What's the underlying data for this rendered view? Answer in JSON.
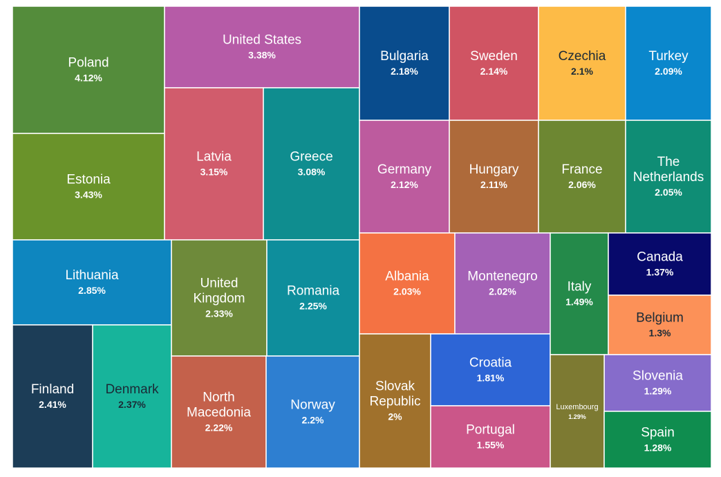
{
  "chart_data": {
    "type": "treemap",
    "title": "",
    "value_suffix": "%",
    "items": [
      {
        "name": "Poland",
        "value": 4.12,
        "display": "4.12%",
        "color": "#548C3B",
        "text_color": "#FFFFFF"
      },
      {
        "name": "Estonia",
        "value": 3.43,
        "display": "3.43%",
        "color": "#6A932A",
        "text_color": "#FFFFFF"
      },
      {
        "name": "United States",
        "value": 3.38,
        "display": "3.38%",
        "color": "#B65BA7",
        "text_color": "#FFFFFF"
      },
      {
        "name": "Latvia",
        "value": 3.15,
        "display": "3.15%",
        "color": "#D15C6C",
        "text_color": "#FFFFFF"
      },
      {
        "name": "Greece",
        "value": 3.08,
        "display": "3.08%",
        "color": "#0F8D8F",
        "text_color": "#FFFFFF"
      },
      {
        "name": "Lithuania",
        "value": 2.85,
        "display": "2.85%",
        "color": "#0E86BF",
        "text_color": "#FFFFFF"
      },
      {
        "name": "Finland",
        "value": 2.41,
        "display": "2.41%",
        "color": "#1C3D57",
        "text_color": "#FFFFFF"
      },
      {
        "name": "Denmark",
        "value": 2.37,
        "display": "2.37%",
        "color": "#17B49B",
        "text_color": "#1B2A36"
      },
      {
        "name": "United Kingdom",
        "value": 2.33,
        "display": "2.33%",
        "color": "#6E8A3A",
        "text_color": "#FFFFFF"
      },
      {
        "name": "Romania",
        "value": 2.25,
        "display": "2.25%",
        "color": "#0E8E9C",
        "text_color": "#FFFFFF"
      },
      {
        "name": "North Macedonia",
        "value": 2.22,
        "display": "2.22%",
        "color": "#C4614B",
        "text_color": "#FFFFFF"
      },
      {
        "name": "Norway",
        "value": 2.2,
        "display": "2.2%",
        "color": "#2E7FD1",
        "text_color": "#FFFFFF"
      },
      {
        "name": "Bulgaria",
        "value": 2.18,
        "display": "2.18%",
        "color": "#094C8D",
        "text_color": "#FFFFFF"
      },
      {
        "name": "Sweden",
        "value": 2.14,
        "display": "2.14%",
        "color": "#D05463",
        "text_color": "#FFFFFF"
      },
      {
        "name": "Germany",
        "value": 2.12,
        "display": "2.12%",
        "color": "#BD5B9E",
        "text_color": "#FFFFFF"
      },
      {
        "name": "Hungary",
        "value": 2.11,
        "display": "2.11%",
        "color": "#AE6A3A",
        "text_color": "#FFFFFF"
      },
      {
        "name": "Czechia",
        "value": 2.1,
        "display": "2.1%",
        "color": "#FDBB47",
        "text_color": "#1B2A36"
      },
      {
        "name": "Turkey",
        "value": 2.09,
        "display": "2.09%",
        "color": "#0A87CC",
        "text_color": "#FFFFFF"
      },
      {
        "name": "France",
        "value": 2.06,
        "display": "2.06%",
        "color": "#6D8732",
        "text_color": "#FFFFFF"
      },
      {
        "name": "The Netherlands",
        "value": 2.05,
        "display": "2.05%",
        "color": "#0F8D75",
        "text_color": "#FFFFFF"
      },
      {
        "name": "Albania",
        "value": 2.03,
        "display": "2.03%",
        "color": "#F47243",
        "text_color": "#FFFFFF"
      },
      {
        "name": "Montenegro",
        "value": 2.02,
        "display": "2.02%",
        "color": "#A461B6",
        "text_color": "#FFFFFF"
      },
      {
        "name": "Slovak Republic",
        "value": 2,
        "display": "2%",
        "color": "#A0712C",
        "text_color": "#FFFFFF"
      },
      {
        "name": "Croatia",
        "value": 1.81,
        "display": "1.81%",
        "color": "#2D65D6",
        "text_color": "#FFFFFF"
      },
      {
        "name": "Portugal",
        "value": 1.55,
        "display": "1.55%",
        "color": "#CB5689",
        "text_color": "#FFFFFF"
      },
      {
        "name": "Italy",
        "value": 1.49,
        "display": "1.49%",
        "color": "#248A4A",
        "text_color": "#FFFFFF"
      },
      {
        "name": "Canada",
        "value": 1.37,
        "display": "1.37%",
        "color": "#07096B",
        "text_color": "#FFFFFF"
      },
      {
        "name": "Belgium",
        "value": 1.3,
        "display": "1.3%",
        "color": "#FC9158",
        "text_color": "#1B2A36"
      },
      {
        "name": "Slovenia",
        "value": 1.29,
        "display": "1.29%",
        "color": "#866CCB",
        "text_color": "#FFFFFF"
      },
      {
        "name": "Luxembourg",
        "value": 1.29,
        "display": "1.29%",
        "color": "#7D7A32",
        "text_color": "#FFFFFF"
      },
      {
        "name": "Spain",
        "value": 1.28,
        "display": "1.28%",
        "color": "#0F8D4F",
        "text_color": "#FFFFFF"
      }
    ]
  }
}
